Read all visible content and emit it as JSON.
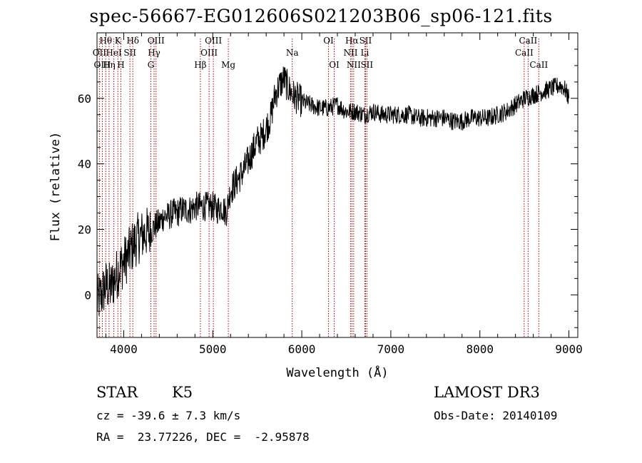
{
  "chart_data": {
    "type": "line",
    "title": "spec-56667-EG012606S021203B06_sp06-121.fits",
    "xlabel": "Wavelength (Å)",
    "ylabel": "Flux (relative)",
    "xlim": [
      3700,
      9100
    ],
    "ylim": [
      -13,
      80
    ],
    "xticks": [
      4000,
      5000,
      6000,
      7000,
      8000,
      9000
    ],
    "yticks": [
      0,
      20,
      40,
      60
    ],
    "series": [
      {
        "name": "spectrum",
        "x": [
          3700,
          3750,
          3800,
          3850,
          3900,
          3950,
          4000,
          4050,
          4100,
          4150,
          4200,
          4250,
          4300,
          4350,
          4400,
          4450,
          4500,
          4550,
          4600,
          4650,
          4700,
          4750,
          4800,
          4850,
          4900,
          4950,
          5000,
          5050,
          5100,
          5150,
          5200,
          5250,
          5300,
          5350,
          5400,
          5450,
          5500,
          5550,
          5600,
          5650,
          5700,
          5750,
          5800,
          5850,
          5900,
          5950,
          6000,
          6100,
          6200,
          6300,
          6400,
          6500,
          6600,
          6700,
          6800,
          6900,
          7000,
          7100,
          7200,
          7300,
          7400,
          7500,
          7600,
          7700,
          7800,
          7900,
          8000,
          8100,
          8200,
          8300,
          8400,
          8500,
          8600,
          8700,
          8800,
          8900,
          8950,
          9000
        ],
        "y": [
          -2,
          0,
          3,
          2,
          5,
          8,
          10,
          12,
          15,
          17,
          18,
          19,
          19,
          21,
          22,
          24,
          24,
          25,
          25,
          26,
          26,
          26,
          27,
          27,
          27,
          27,
          27,
          26,
          27,
          25,
          32,
          34,
          36,
          38,
          41,
          44,
          47,
          48,
          51,
          54,
          61,
          64,
          66,
          63,
          61,
          60,
          59,
          58,
          57,
          57,
          58,
          56,
          56,
          55,
          56,
          55,
          55,
          55,
          55,
          54,
          54,
          54,
          54,
          53,
          53,
          54,
          54,
          54,
          55,
          56,
          58,
          60,
          61,
          62,
          63,
          64,
          63,
          60
        ]
      }
    ],
    "lines": [
      {
        "label": "Hθ",
        "x": 3798,
        "row": 0
      },
      {
        "label": "OII",
        "x": 3727,
        "row": 1
      },
      {
        "label": "OIII",
        "x": 3760,
        "row": 2
      },
      {
        "label": "K",
        "x": 3934,
        "row": 0
      },
      {
        "label": "HeI",
        "x": 3889,
        "row": 1
      },
      {
        "label": "Hη",
        "x": 3835,
        "row": 2
      },
      {
        "label": "SII",
        "x": 4070,
        "row": 1
      },
      {
        "label": "H",
        "x": 3968,
        "row": 2
      },
      {
        "label": "Hδ",
        "x": 4102,
        "row": 0
      },
      {
        "label": "OIII",
        "x": 4363,
        "row": 0
      },
      {
        "label": "Hγ",
        "x": 4341,
        "row": 1
      },
      {
        "label": "G",
        "x": 4305,
        "row": 2
      },
      {
        "label": "Hβ",
        "x": 4861,
        "row": 2
      },
      {
        "label": "OIII",
        "x": 5007,
        "row": 0
      },
      {
        "label": "OIII",
        "x": 4959,
        "row": 1
      },
      {
        "label": "Mg",
        "x": 5175,
        "row": 2
      },
      {
        "label": "Na",
        "x": 5893,
        "row": 1
      },
      {
        "label": "OI",
        "x": 6300,
        "row": 0
      },
      {
        "label": "OI",
        "x": 6364,
        "row": 2
      },
      {
        "label": "Hα",
        "x": 6563,
        "row": 0
      },
      {
        "label": "NII",
        "x": 6548,
        "row": 1
      },
      {
        "label": "NII",
        "x": 6583,
        "row": 2
      },
      {
        "label": "SII",
        "x": 6716,
        "row": 0
      },
      {
        "label": "Li",
        "x": 6708,
        "row": 1
      },
      {
        "label": "SII",
        "x": 6731,
        "row": 2
      },
      {
        "label": "CaII",
        "x": 8542,
        "row": 0
      },
      {
        "label": "CaII",
        "x": 8498,
        "row": 1
      },
      {
        "label": "CaII",
        "x": 8662,
        "row": 2
      }
    ]
  },
  "info": {
    "class": "STAR",
    "subclass": "K5",
    "survey": "LAMOST DR3",
    "cz": "cz = -39.6 ± 7.3 km/s",
    "obs_date": "Obs-Date: 20140109",
    "radec": "RA =  23.77226, DEC =  -2.95878"
  }
}
